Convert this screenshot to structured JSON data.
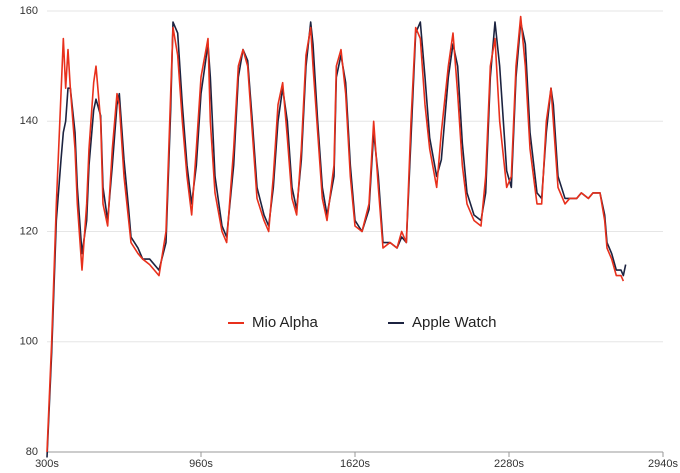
{
  "chart_data": {
    "type": "line",
    "x": [
      300,
      320,
      340,
      360,
      370,
      380,
      390,
      400,
      420,
      430,
      450,
      470,
      480,
      500,
      510,
      530,
      540,
      560,
      580,
      600,
      610,
      630,
      650,
      660,
      690,
      710,
      740,
      780,
      810,
      830,
      840,
      860,
      880,
      900,
      920,
      940,
      960,
      990,
      1000,
      1020,
      1050,
      1070,
      1100,
      1120,
      1140,
      1160,
      1180,
      1200,
      1230,
      1250,
      1270,
      1290,
      1310,
      1330,
      1350,
      1370,
      1390,
      1410,
      1430,
      1440,
      1460,
      1480,
      1500,
      1530,
      1540,
      1560,
      1580,
      1600,
      1620,
      1650,
      1680,
      1700,
      1720,
      1740,
      1770,
      1800,
      1820,
      1840,
      1860,
      1880,
      1900,
      1920,
      1940,
      1970,
      1990,
      2020,
      2040,
      2060,
      2080,
      2100,
      2130,
      2160,
      2180,
      2200,
      2220,
      2240,
      2270,
      2290,
      2310,
      2330,
      2350,
      2370,
      2400,
      2420,
      2440,
      2460,
      2470,
      2490,
      2520,
      2540,
      2570,
      2590,
      2620,
      2640,
      2670,
      2690,
      2700,
      2720,
      2740,
      2760,
      2770,
      2780
    ],
    "series": [
      {
        "name": "Mio Alpha",
        "color": "#e8301c",
        "values": [
          80,
          100,
          125,
          145,
          155,
          146,
          153,
          146,
          135,
          125,
          113,
          125,
          135,
          147,
          150,
          140,
          125,
          121,
          135,
          145,
          143,
          130,
          122,
          118,
          116,
          115,
          114,
          112,
          120,
          145,
          157,
          152,
          140,
          130,
          123,
          135,
          148,
          155,
          140,
          127,
          120,
          118,
          135,
          150,
          153,
          150,
          138,
          126,
          122,
          120,
          130,
          143,
          147,
          137,
          126,
          123,
          135,
          152,
          157,
          150,
          138,
          126,
          122,
          132,
          150,
          153,
          145,
          130,
          121,
          120,
          125,
          140,
          128,
          117,
          118,
          117,
          120,
          118,
          140,
          157,
          155,
          143,
          135,
          128,
          138,
          150,
          156,
          145,
          132,
          125,
          122,
          121,
          130,
          150,
          155,
          140,
          128,
          130,
          150,
          159,
          150,
          135,
          125,
          125,
          140,
          146,
          140,
          128,
          125,
          126,
          126,
          127,
          126,
          127,
          127,
          122,
          117,
          115,
          112,
          112,
          111,
          null
        ]
      },
      {
        "name": "Apple Watch",
        "color": "#1c2340",
        "values": [
          79,
          98,
          122,
          133,
          138,
          140,
          146,
          146,
          138,
          128,
          116,
          122,
          132,
          142,
          144,
          141,
          128,
          122,
          132,
          143,
          145,
          133,
          124,
          119,
          117,
          115,
          115,
          113,
          118,
          142,
          158,
          156,
          143,
          132,
          125,
          132,
          145,
          154,
          148,
          130,
          121,
          119,
          132,
          148,
          153,
          151,
          140,
          128,
          123,
          121,
          128,
          140,
          146,
          140,
          128,
          124,
          133,
          150,
          158,
          154,
          140,
          128,
          123,
          130,
          148,
          152,
          147,
          132,
          122,
          120,
          124,
          138,
          130,
          118,
          118,
          117,
          119,
          118,
          137,
          156,
          158,
          148,
          137,
          130,
          133,
          148,
          154,
          150,
          136,
          127,
          123,
          122,
          127,
          148,
          158,
          150,
          131,
          128,
          148,
          158,
          154,
          138,
          127,
          126,
          138,
          146,
          143,
          130,
          126,
          126,
          126,
          127,
          126,
          127,
          127,
          123,
          118,
          116,
          113,
          113,
          112,
          114
        ]
      }
    ],
    "xlim": [
      300,
      2940
    ],
    "xticks": [
      {
        "value": 300,
        "label": "300s"
      },
      {
        "value": 960,
        "label": "960s"
      },
      {
        "value": 1620,
        "label": "1620s"
      },
      {
        "value": 2280,
        "label": "2280s"
      },
      {
        "value": 2940,
        "label": "2940s"
      }
    ],
    "ylim": [
      80,
      160
    ],
    "yticks": [
      80,
      100,
      120,
      140,
      160
    ],
    "grid": true,
    "legend": "center"
  }
}
